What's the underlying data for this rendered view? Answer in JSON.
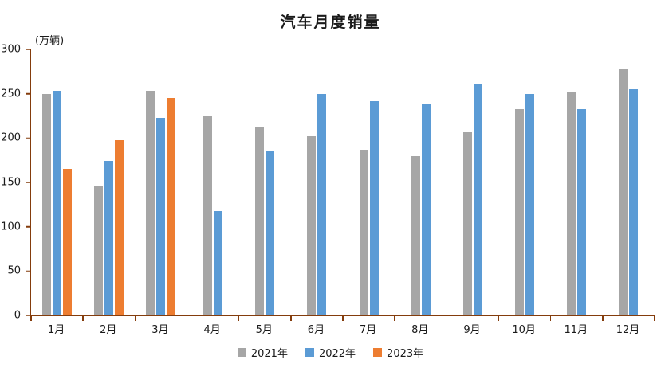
{
  "chart_data": {
    "type": "bar",
    "title": "汽车月度销量",
    "ylabel": "(万辆)",
    "categories": [
      "1月",
      "2月",
      "3月",
      "4月",
      "5月",
      "6月",
      "7月",
      "8月",
      "9月",
      "10月",
      "11月",
      "12月"
    ],
    "series": [
      {
        "name": "2021年",
        "color": "#a6a6a6",
        "values": [
          250,
          146,
          253,
          225,
          213,
          202,
          187,
          180,
          207,
          233,
          252,
          278
        ]
      },
      {
        "name": "2022年",
        "color": "#5b9bd5",
        "values": [
          253,
          174,
          223,
          118,
          186,
          250,
          242,
          238,
          261,
          250,
          233,
          255
        ]
      },
      {
        "name": "2023年",
        "color": "#ed7d31",
        "values": [
          165,
          198,
          245,
          null,
          null,
          null,
          null,
          null,
          null,
          null,
          null,
          null
        ]
      }
    ],
    "ylim": [
      0,
      300
    ],
    "yticks": [
      0,
      50,
      100,
      150,
      200,
      250,
      300
    ],
    "ytick_interval": 50,
    "grid": false,
    "legend_position": "bottom",
    "axis_color": "#843C0C"
  }
}
